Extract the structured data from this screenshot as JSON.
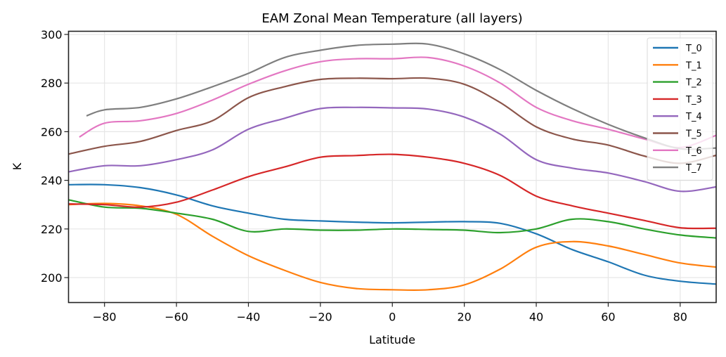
{
  "chart_data": {
    "type": "line",
    "title": "EAM Zonal Mean Temperature (all layers)",
    "xlabel": "Latitude",
    "ylabel": "K",
    "xlim": [
      -90,
      90
    ],
    "ylim": [
      190,
      301
    ],
    "xticks": [
      -80,
      -60,
      -40,
      -20,
      0,
      20,
      40,
      60,
      80
    ],
    "xtick_labels": [
      "−80",
      "−60",
      "−40",
      "−20",
      "0",
      "20",
      "40",
      "60",
      "80"
    ],
    "yticks": [
      200,
      220,
      240,
      260,
      280,
      300
    ],
    "ytick_labels": [
      "200",
      "220",
      "240",
      "260",
      "280",
      "300"
    ],
    "grid": true,
    "legend_position": "top-right",
    "series": [
      {
        "name": "T_0",
        "color": "#1f77b4",
        "x": [
          -90,
          -80,
          -70,
          -60,
          -50,
          -40,
          -30,
          -20,
          -10,
          0,
          10,
          20,
          30,
          40,
          50,
          60,
          70,
          80,
          90
        ],
        "values": [
          238.2,
          238.2,
          237,
          234,
          229.5,
          226.5,
          224,
          223.3,
          222.8,
          222.5,
          222.8,
          223,
          222.3,
          218,
          211.5,
          206.5,
          201,
          198.5,
          197.3
        ]
      },
      {
        "name": "T_1",
        "color": "#ff7f0e",
        "x": [
          -90,
          -80,
          -70,
          -60,
          -50,
          -40,
          -30,
          -20,
          -10,
          0,
          10,
          20,
          30,
          40,
          50,
          60,
          70,
          80,
          90
        ],
        "values": [
          230,
          230.5,
          229.5,
          226,
          217,
          209,
          203,
          198,
          195.5,
          195,
          195,
          197,
          203.5,
          212.5,
          214.8,
          213,
          209.5,
          206,
          204.3
        ]
      },
      {
        "name": "T_2",
        "color": "#2ca02c",
        "x": [
          -90,
          -80,
          -70,
          -60,
          -50,
          -40,
          -30,
          -20,
          -10,
          0,
          10,
          20,
          30,
          40,
          50,
          60,
          70,
          80,
          90
        ],
        "values": [
          232,
          229,
          228.5,
          226.5,
          224,
          219,
          220,
          219.5,
          219.5,
          220,
          219.8,
          219.5,
          218.5,
          220,
          224,
          223,
          220,
          217.5,
          216.3
        ]
      },
      {
        "name": "T_3",
        "color": "#d62728",
        "x": [
          -90,
          -80,
          -70,
          -60,
          -50,
          -40,
          -30,
          -20,
          -10,
          0,
          10,
          20,
          30,
          40,
          50,
          60,
          70,
          80,
          90
        ],
        "values": [
          230.3,
          230,
          229,
          231,
          236,
          241.5,
          245.5,
          249.5,
          250.2,
          250.7,
          249.5,
          247,
          242,
          233.5,
          229.5,
          226.5,
          223.5,
          220.5,
          220.3
        ]
      },
      {
        "name": "T_4",
        "color": "#9467bd",
        "x": [
          -90,
          -80,
          -70,
          -60,
          -50,
          -40,
          -30,
          -20,
          -10,
          0,
          10,
          20,
          30,
          40,
          50,
          60,
          70,
          80,
          90
        ],
        "values": [
          243.5,
          246,
          246,
          248.5,
          252.5,
          261,
          265.5,
          269.5,
          270,
          269.8,
          269.3,
          266,
          259,
          248.5,
          245,
          243,
          239.5,
          235.5,
          237.3
        ]
      },
      {
        "name": "T_5",
        "color": "#8c564b",
        "x": [
          -90,
          -80,
          -70,
          -60,
          -50,
          -40,
          -30,
          -20,
          -10,
          0,
          10,
          20,
          30,
          40,
          50,
          60,
          70,
          80,
          90
        ],
        "values": [
          250.8,
          254,
          256,
          260.5,
          264.5,
          274,
          278.5,
          281.5,
          282,
          281.8,
          282,
          279.5,
          272,
          262,
          257,
          254.5,
          250,
          247,
          250.3
        ]
      },
      {
        "name": "T_6",
        "color": "#e377c2",
        "x": [
          -87,
          -80,
          -70,
          -60,
          -50,
          -40,
          -30,
          -20,
          -10,
          0,
          10,
          20,
          30,
          40,
          50,
          60,
          70,
          80,
          90
        ],
        "values": [
          257.8,
          263.5,
          264.5,
          267.5,
          273,
          279.5,
          285,
          288.8,
          290,
          290,
          290.5,
          287,
          280,
          270,
          264.5,
          261,
          257,
          253.5,
          258.5
        ]
      },
      {
        "name": "T_7",
        "color": "#7f7f7f",
        "x": [
          -85,
          -80,
          -70,
          -60,
          -50,
          -40,
          -30,
          -20,
          -10,
          0,
          10,
          20,
          30,
          40,
          50,
          60,
          70,
          80,
          90
        ],
        "values": [
          266.5,
          269,
          270,
          273.5,
          278.5,
          284,
          290.5,
          293.5,
          295.5,
          296,
          296,
          292,
          285.5,
          277,
          269.5,
          263,
          257.5,
          253,
          253.3
        ]
      }
    ]
  }
}
